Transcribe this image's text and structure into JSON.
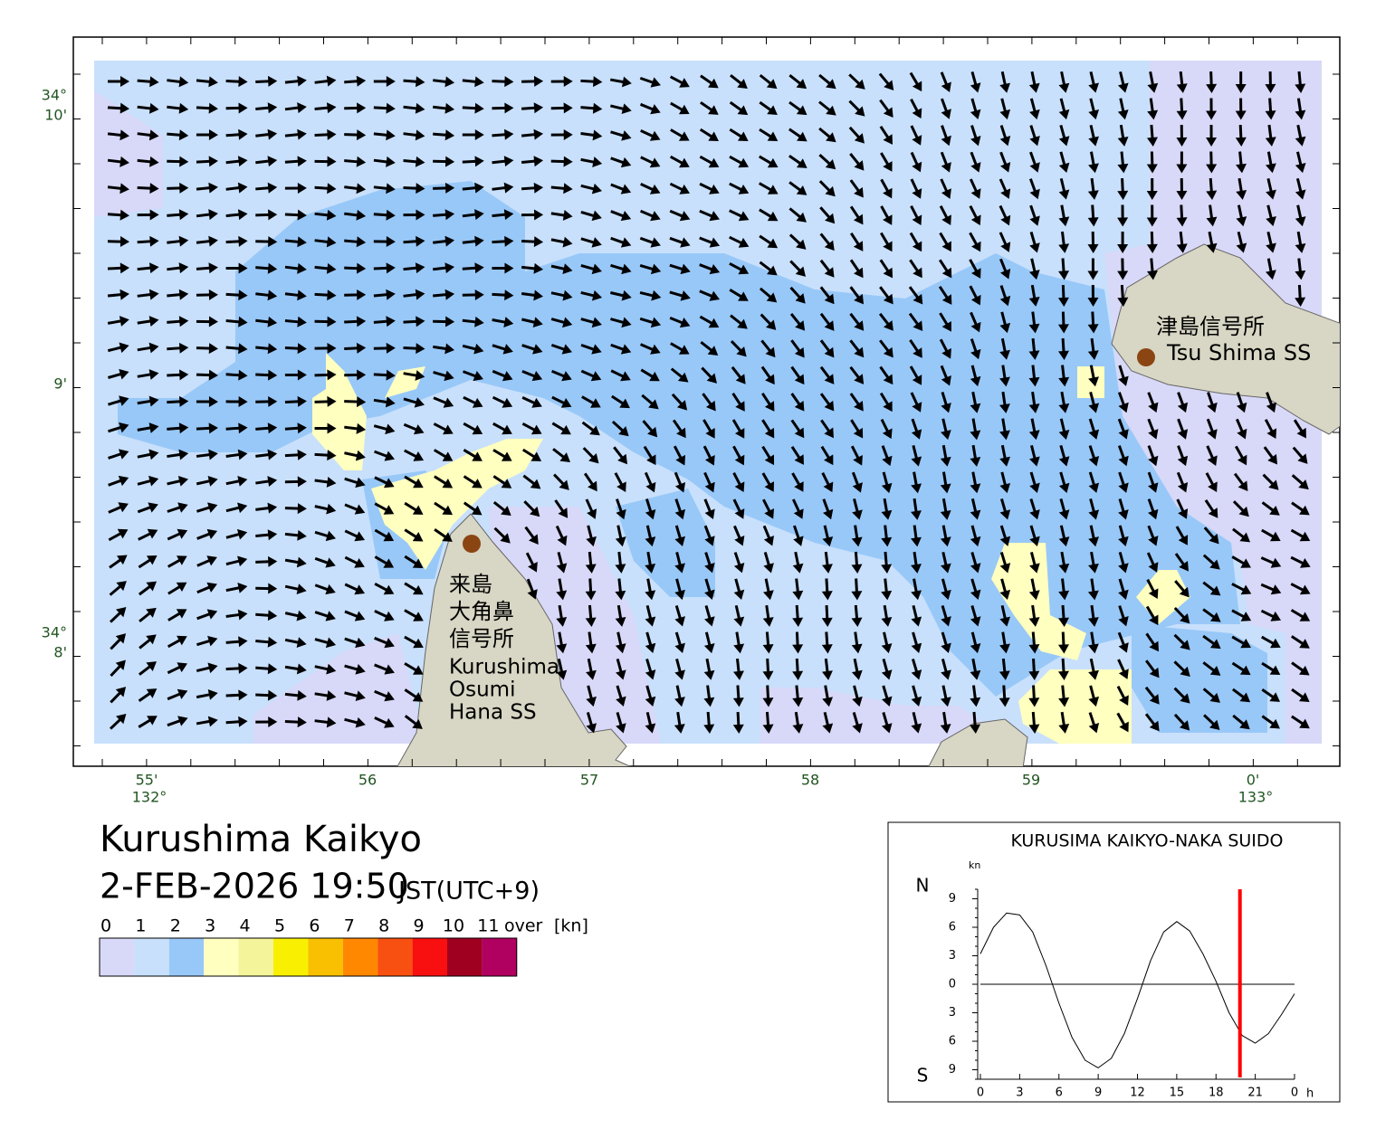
{
  "header": {
    "title": "Kurushima Kaikyo",
    "datetime": "2-FEB-2026 19:50",
    "timezone": "JST(UTC+9)"
  },
  "map": {
    "lat_labels": [
      {
        "deg": "34°",
        "min": "10'"
      },
      {
        "min": "9'"
      },
      {
        "deg": "34°",
        "min": "8'"
      }
    ],
    "lon_labels": [
      {
        "min": "55'",
        "deg": "132°"
      },
      {
        "min": "56"
      },
      {
        "min": "57"
      },
      {
        "min": "58"
      },
      {
        "min": "59"
      },
      {
        "min": "0'",
        "deg": "133°"
      }
    ],
    "stations": [
      {
        "name_ja": [
          "津島信号所"
        ],
        "name_en": [
          "Tsu Shima SS"
        ]
      },
      {
        "name_ja": [
          "来島",
          "大角鼻",
          "信号所"
        ],
        "name_en": [
          "Kurushima",
          "Osumi",
          "Hana SS"
        ]
      }
    ]
  },
  "legend": {
    "ticks": [
      0,
      1,
      2,
      3,
      4,
      5,
      6,
      7,
      8,
      9,
      10,
      11
    ],
    "over": "over",
    "unit": "[kn]",
    "colors": [
      "#d8d8f8",
      "#c8e0fc",
      "#98c8f8",
      "#ffffc0",
      "#f4f49a",
      "#f8f000",
      "#f8c000",
      "#ff8800",
      "#f85010",
      "#f81010",
      "#a00020",
      "#b00060"
    ]
  },
  "chart_data": {
    "type": "line",
    "title": "KURUSIMA KAIKYO-NAKA SUIDO",
    "y_unit": "kn",
    "x_unit": "h",
    "north_label": "N",
    "south_label": "S",
    "x": [
      0,
      1,
      2,
      3,
      4,
      5,
      6,
      7,
      8,
      9,
      10,
      11,
      12,
      13,
      14,
      15,
      16,
      17,
      18,
      19,
      20,
      21,
      22,
      23,
      24
    ],
    "values": [
      3.2,
      6.0,
      7.5,
      7.3,
      5.5,
      2.0,
      -2.0,
      -5.6,
      -8.0,
      -8.8,
      -7.8,
      -5.2,
      -1.5,
      2.5,
      5.5,
      6.6,
      5.6,
      3.2,
      0.3,
      -3.0,
      -5.4,
      -6.2,
      -5.2,
      -3.2,
      -1.0
    ],
    "xlim": [
      0,
      24
    ],
    "ylim": [
      -10,
      10
    ],
    "xticks": [
      0,
      3,
      6,
      9,
      12,
      15,
      18,
      21,
      {
        "value": 24,
        "label": "0"
      }
    ],
    "yticks": [
      9,
      6,
      3,
      0,
      {
        "value": -3,
        "label": "3"
      },
      {
        "value": -6,
        "label": "6"
      },
      {
        "value": -9,
        "label": "9"
      }
    ],
    "current_time": 19.83,
    "color": "#000000",
    "marker_color": "#ff0000"
  }
}
